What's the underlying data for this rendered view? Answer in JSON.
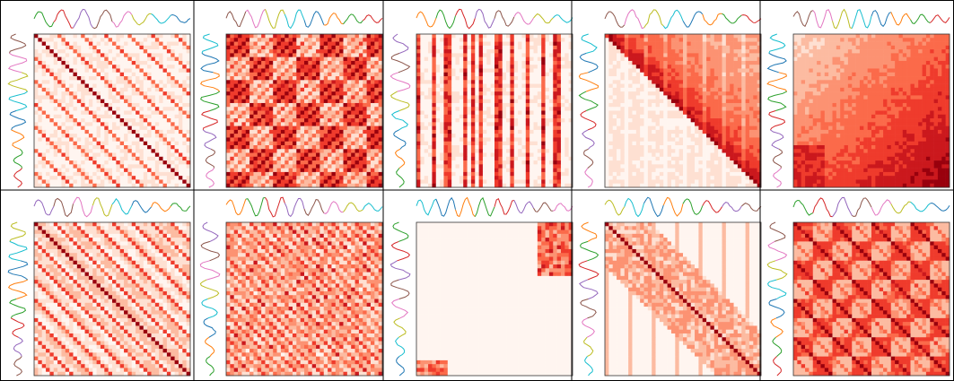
{
  "figure": {
    "description_visible_text": "",
    "grid": {
      "rows": 2,
      "cols": 5
    },
    "colormap": [
      "#fff5f0",
      "#fee0d2",
      "#fcbba1",
      "#fc9272",
      "#fb6a4a",
      "#ef3b2c",
      "#cb181d",
      "#99000d"
    ],
    "series_colors": [
      "#1f77b4",
      "#ff7f0e",
      "#2ca02c",
      "#d62728",
      "#9467bd",
      "#8c564b",
      "#e377c2",
      "#bcbd22",
      "#17becf"
    ],
    "panels": [
      {
        "name": "panel-r1c1",
        "pattern": "diagonal-stripes",
        "seed": 11
      },
      {
        "name": "panel-r1c2",
        "pattern": "block-checker",
        "seed": 23
      },
      {
        "name": "panel-r1c3",
        "pattern": "vertical-stripes",
        "seed": 37
      },
      {
        "name": "panel-r1c4",
        "pattern": "upper-triangle-diagonal",
        "seed": 41
      },
      {
        "name": "panel-r1c5",
        "pattern": "gradient-corner",
        "seed": 59
      },
      {
        "name": "panel-r2c1",
        "pattern": "diagonal-stripes-dense",
        "seed": 67
      },
      {
        "name": "panel-r2c2",
        "pattern": "noisy-diagonal",
        "seed": 73
      },
      {
        "name": "panel-r2c3",
        "pattern": "sparse-corners",
        "seed": 89
      },
      {
        "name": "panel-r2c4",
        "pattern": "diagonal-band",
        "seed": 97
      },
      {
        "name": "panel-r2c5",
        "pattern": "checker-diagonal",
        "seed": 101
      }
    ]
  }
}
